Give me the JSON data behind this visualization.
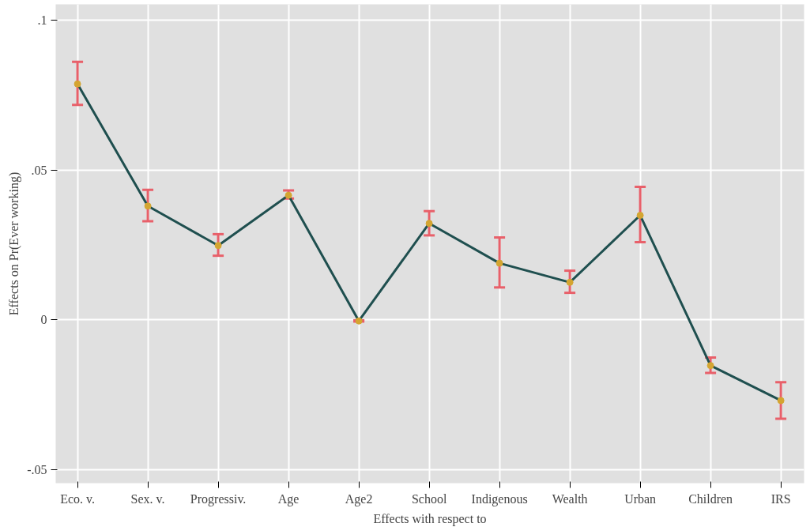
{
  "chart_data": {
    "type": "line",
    "xlabel": "Effects with respect to",
    "ylabel": "Effects on Pr(Ever working)",
    "categories": [
      "Eco. v.",
      "Sex. v.",
      "Progressiv.",
      "Age",
      "Age2",
      "School",
      "Indigenous",
      "Wealth",
      "Urban",
      "Children",
      "IRS"
    ],
    "series": [
      {
        "color": "#1f4f4f",
        "values": [
          0.0788,
          0.038,
          0.0248,
          0.0416,
          -0.0004,
          0.0322,
          0.0189,
          0.0125,
          0.0349,
          -0.0153,
          -0.027
        ],
        "errors": [
          [
            0.0718,
            0.0862
          ],
          [
            0.0329,
            0.0434
          ],
          [
            0.0214,
            0.0286
          ],
          [
            0.0405,
            0.0432
          ],
          [
            -0.0006,
            -0.0002
          ],
          [
            0.0282,
            0.0363
          ],
          [
            0.0108,
            0.0275
          ],
          [
            0.009,
            0.0164
          ],
          [
            0.0259,
            0.0444
          ],
          [
            -0.0178,
            -0.0126
          ],
          [
            -0.0331,
            -0.0209
          ]
        ]
      }
    ],
    "ylim": [
      -0.0546,
      0.1054
    ],
    "yticks": [
      {
        "value": -0.05,
        "label": "-.05"
      },
      {
        "value": 0,
        "label": "0"
      },
      {
        "value": 0.05,
        "label": ".05"
      },
      {
        "value": 0.1,
        "label": ".1"
      }
    ],
    "grid": true,
    "marker": "circle",
    "line_style": "solid"
  }
}
